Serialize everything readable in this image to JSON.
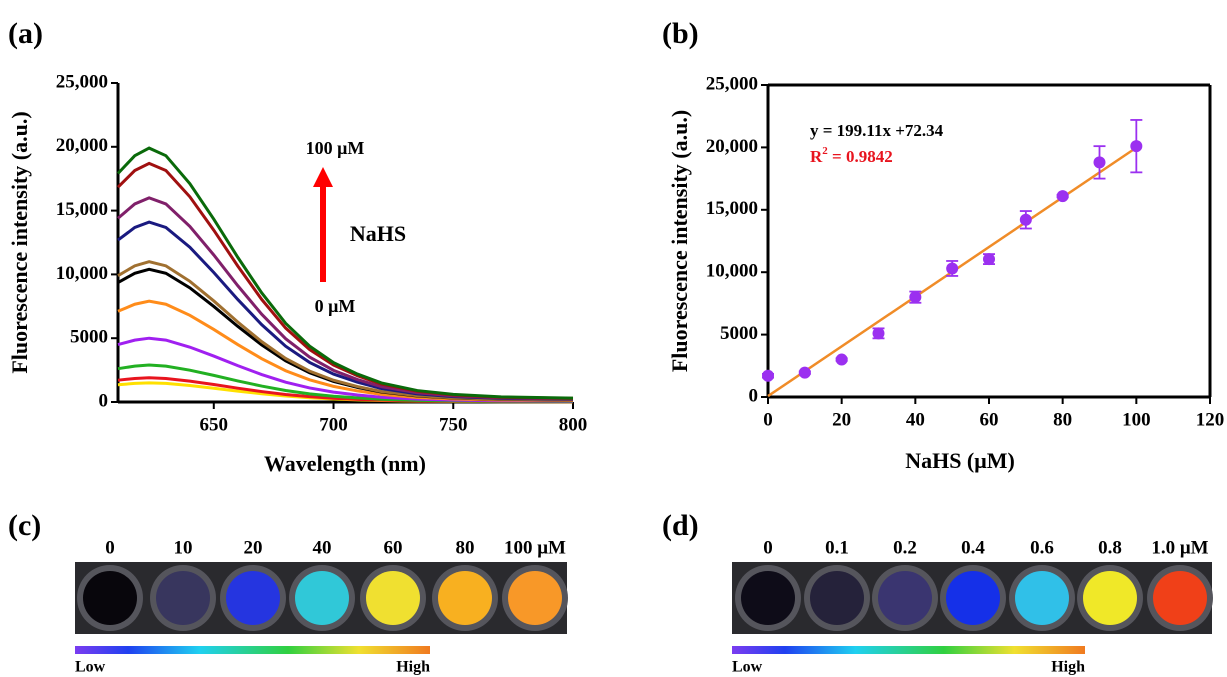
{
  "chart_data": [
    {
      "type": "line",
      "panel_label": "(a)",
      "x_label": "Wavelength (nm)",
      "y_label": "Fluorescence intensity (a.u.)",
      "xlim": [
        610,
        800
      ],
      "xticks": [
        650,
        700,
        750,
        800
      ],
      "ylim": [
        0,
        25000
      ],
      "yticks": [
        0,
        5000,
        {
          "value": 10000,
          "label": "10,000"
        },
        {
          "value": 15000,
          "label": "15,000"
        },
        {
          "value": 20000,
          "label": "20,000"
        },
        {
          "value": 25000,
          "label": "25,000"
        }
      ],
      "annotations": [
        "100 μM",
        "NaHS",
        "0 μM"
      ],
      "x": [
        610,
        617,
        623,
        630,
        640,
        650,
        660,
        670,
        680,
        690,
        700,
        710,
        720,
        735,
        750,
        770,
        800
      ],
      "series": [
        {
          "color": "#ffe000",
          "values": [
            1350,
            1455,
            1500,
            1455,
            1290,
            1080,
            855,
            645,
            465,
            330,
            233,
            165,
            113,
            68,
            45,
            30,
            23
          ]
        },
        {
          "color": "#e8141e",
          "values": [
            1710,
            1843,
            1900,
            1843,
            1634,
            1368,
            1083,
            817,
            589,
            418,
            295,
            209,
            143,
            86,
            57,
            38,
            29
          ]
        },
        {
          "color": "#22b022",
          "values": [
            2610,
            2813,
            2900,
            2813,
            2494,
            2088,
            1653,
            1247,
            899,
            638,
            450,
            319,
            218,
            131,
            87,
            58,
            44
          ]
        },
        {
          "color": "#a020f0",
          "values": [
            4500,
            4850,
            5000,
            4850,
            4300,
            3600,
            2850,
            2150,
            1550,
            1100,
            775,
            550,
            375,
            225,
            150,
            100,
            75
          ]
        },
        {
          "color": "#ff8c1a",
          "values": [
            7110,
            7663,
            7900,
            7663,
            6794,
            5688,
            4503,
            3397,
            2449,
            1738,
            1225,
            869,
            593,
            356,
            237,
            158,
            119
          ]
        },
        {
          "color": "#000000",
          "values": [
            9360,
            10088,
            10400,
            10088,
            8944,
            7488,
            5928,
            4472,
            3224,
            2288,
            1612,
            1144,
            780,
            468,
            312,
            208,
            156
          ]
        },
        {
          "color": "#a07030",
          "values": [
            9900,
            10670,
            11000,
            10670,
            9460,
            7920,
            6270,
            4730,
            3410,
            2420,
            1705,
            1210,
            825,
            495,
            330,
            220,
            165
          ]
        },
        {
          "color": "#1a1a80",
          "values": [
            12690,
            13677,
            14100,
            13677,
            12126,
            10152,
            8037,
            6063,
            4371,
            3102,
            2186,
            1551,
            1058,
            635,
            423,
            282,
            212
          ]
        },
        {
          "color": "#80206a",
          "values": [
            14400,
            15520,
            16000,
            15520,
            13760,
            11520,
            9120,
            6880,
            4960,
            3520,
            2480,
            1760,
            1200,
            720,
            480,
            320,
            240
          ]
        },
        {
          "color": "#a01010",
          "values": [
            16830,
            18139,
            18700,
            18139,
            16082,
            13464,
            10659,
            8041,
            5797,
            4114,
            2899,
            2057,
            1403,
            842,
            561,
            374,
            281
          ]
        },
        {
          "color": "#0a6a0a",
          "values": [
            17910,
            19303,
            19900,
            19303,
            17114,
            14328,
            11343,
            8557,
            6169,
            4378,
            3085,
            2189,
            1493,
            896,
            597,
            398,
            299
          ]
        }
      ]
    },
    {
      "type": "scatter",
      "panel_label": "(b)",
      "x_label": "NaHS (μM)",
      "y_label": "Fluorescence intensity (a.u.)",
      "xlim": [
        0,
        120
      ],
      "xticks": [
        0,
        20,
        40,
        60,
        80,
        100,
        120
      ],
      "ylim": [
        0,
        25000
      ],
      "yticks": [
        0,
        5000,
        {
          "value": 10000,
          "label": "10,000"
        },
        {
          "value": 15000,
          "label": "15,000"
        },
        {
          "value": 20000,
          "label": "20,000"
        },
        {
          "value": 25000,
          "label": "25,000"
        }
      ],
      "x": [
        0,
        10,
        20,
        30,
        40,
        50,
        60,
        70,
        80,
        90,
        100
      ],
      "values": [
        1700,
        1950,
        3000,
        5100,
        8000,
        10300,
        11050,
        14200,
        16100,
        18800,
        20100
      ],
      "errors": [
        150,
        100,
        100,
        400,
        450,
        600,
        400,
        700,
        100,
        1300,
        2100
      ],
      "color": "#9b30f0",
      "fit": {
        "slope": 199.11,
        "intercept": 72.34,
        "color": "#f08c28",
        "label": "y = 199.11x +72.34",
        "r2": [
          "R",
          "2",
          " = 0.9842"
        ],
        "label_color": "#e8141e"
      }
    }
  ],
  "panels": [
    {
      "label": "(c)",
      "concentrations": [
        "0",
        "10",
        "20",
        "40",
        "60",
        "80",
        "100 μM"
      ],
      "well_colors": [
        "#08060c",
        "#38365e",
        "#2535e0",
        "#30c8d8",
        "#f0e030",
        "#f8b020",
        "#f89828"
      ],
      "low": "Low",
      "high": "High"
    },
    {
      "label": "(d)",
      "concentrations": [
        "0",
        "0.1",
        "0.2",
        "0.4",
        "0.6",
        "0.8",
        "1.0 μM"
      ],
      "well_colors": [
        "#0e0c18",
        "#25223a",
        "#3a3570",
        "#1530e8",
        "#30c0e8",
        "#f0e828",
        "#f04018"
      ],
      "low": "Low",
      "high": "High"
    }
  ]
}
